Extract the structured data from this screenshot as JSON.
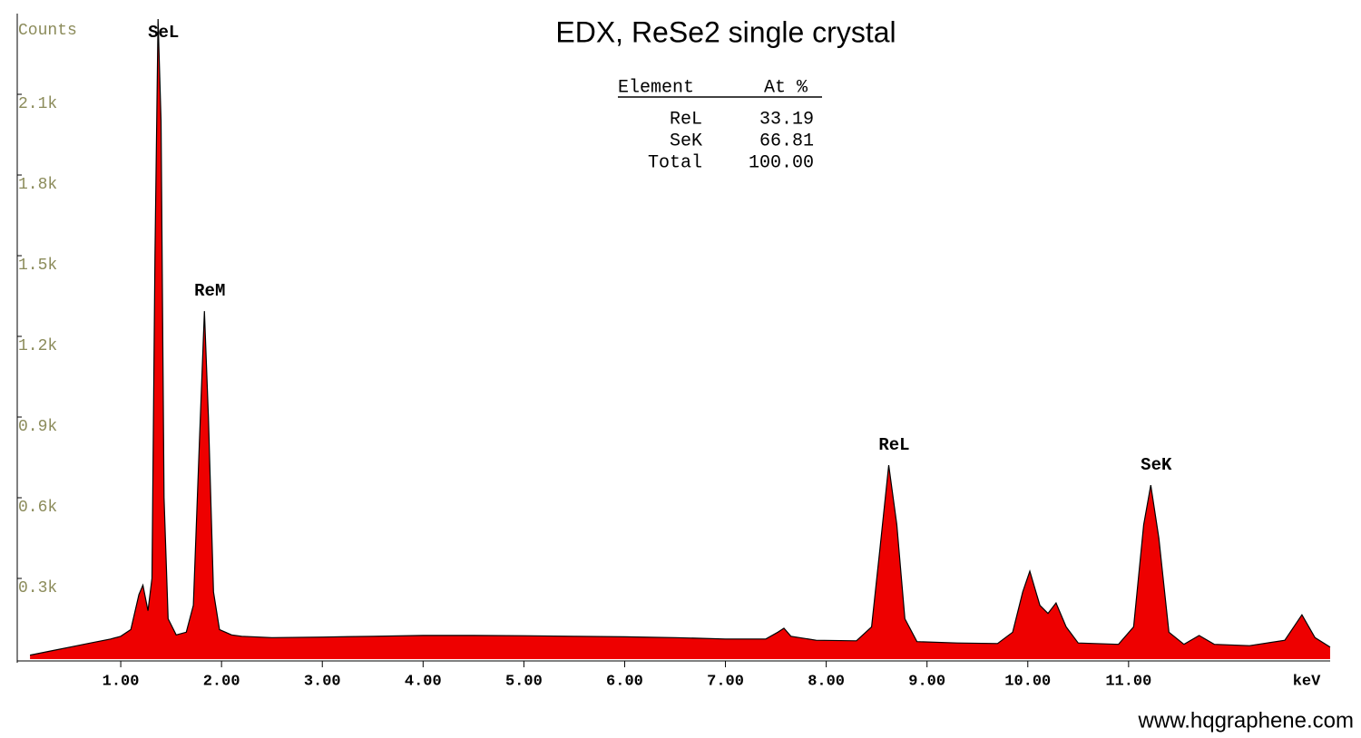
{
  "chart_data": {
    "type": "area",
    "title": "EDX, ReSe2 single crystal",
    "y_label": "Counts",
    "x_label": "keV",
    "watermark": "www.hqgraphene.com",
    "color": "#ee0000",
    "line_color": "#000000",
    "x": [
      0.1,
      0.3,
      0.5,
      0.7,
      0.9,
      1.0,
      1.1,
      1.18,
      1.22,
      1.27,
      1.31,
      1.34,
      1.37,
      1.4,
      1.43,
      1.47,
      1.55,
      1.65,
      1.72,
      1.78,
      1.83,
      1.87,
      1.92,
      1.98,
      2.1,
      2.2,
      2.5,
      3.0,
      3.5,
      4.0,
      4.5,
      5.0,
      5.5,
      6.0,
      6.5,
      7.0,
      7.4,
      7.52,
      7.58,
      7.65,
      7.9,
      8.3,
      8.45,
      8.53,
      8.62,
      8.7,
      8.78,
      8.9,
      9.3,
      9.7,
      9.85,
      9.95,
      10.02,
      10.12,
      10.2,
      10.28,
      10.38,
      10.5,
      10.9,
      11.05,
      11.15,
      11.22,
      11.3,
      11.4,
      11.55,
      11.7,
      11.85,
      12.2,
      12.55,
      12.72,
      12.85,
      13.0
    ],
    "values": [
      15,
      30,
      45,
      60,
      75,
      85,
      110,
      240,
      275,
      180,
      300,
      1500,
      2380,
      2000,
      600,
      150,
      90,
      100,
      200,
      800,
      1294,
      900,
      250,
      110,
      90,
      85,
      80,
      82,
      85,
      88,
      88,
      87,
      85,
      83,
      80,
      75,
      75,
      100,
      115,
      85,
      70,
      68,
      120,
      400,
      721,
      500,
      150,
      65,
      60,
      58,
      100,
      250,
      327,
      200,
      170,
      209,
      120,
      60,
      55,
      120,
      500,
      647,
      450,
      100,
      55,
      88,
      55,
      50,
      70,
      165,
      80,
      45
    ],
    "peak_labels": [
      {
        "text": "SeL",
        "x": 1.37
      },
      {
        "text": "ReM",
        "x": 1.83
      },
      {
        "text": "ReL",
        "x": 8.62
      },
      {
        "text": "SeK",
        "x": 11.22
      }
    ],
    "xlim": [
      0,
      13
    ],
    "xticks": [
      {
        "value": 1,
        "label": "1.00"
      },
      {
        "value": 2,
        "label": "2.00"
      },
      {
        "value": 3,
        "label": "3.00"
      },
      {
        "value": 4,
        "label": "4.00"
      },
      {
        "value": 5,
        "label": "5.00"
      },
      {
        "value": 6,
        "label": "6.00"
      },
      {
        "value": 7,
        "label": "7.00"
      },
      {
        "value": 8,
        "label": "8.00"
      },
      {
        "value": 9,
        "label": "9.00"
      },
      {
        "value": 10,
        "label": "10.00"
      },
      {
        "value": 11,
        "label": "11.00"
      }
    ],
    "ylim": [
      0,
      2390
    ],
    "yticks": [
      {
        "value": 300,
        "label": "0.3k"
      },
      {
        "value": 600,
        "label": "0.6k"
      },
      {
        "value": 900,
        "label": "0.9k"
      },
      {
        "value": 1200,
        "label": "1.2k"
      },
      {
        "value": 1500,
        "label": "1.5k"
      },
      {
        "value": 1800,
        "label": "1.8k"
      },
      {
        "value": 2100,
        "label": "2.1k"
      }
    ],
    "quant_table": {
      "header": [
        "Element",
        "At %"
      ],
      "rows": [
        [
          "ReL",
          "33.19"
        ],
        [
          "SeK",
          "66.81"
        ],
        [
          "Total",
          "100.00"
        ]
      ]
    }
  }
}
